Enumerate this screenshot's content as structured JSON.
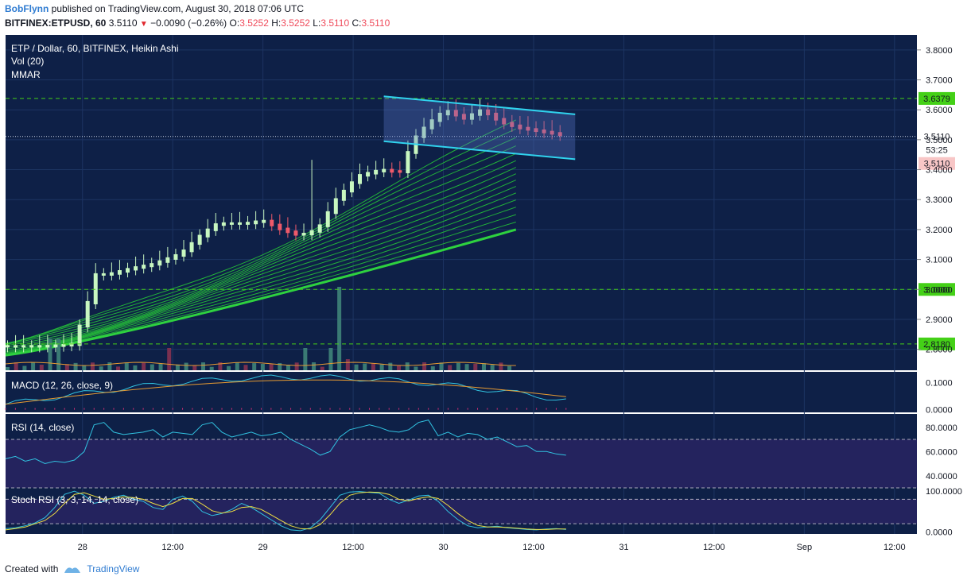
{
  "header": {
    "author": "BobFlynn",
    "published_text": "published on TradingView.com, August 30, 2018 07:06 UTC",
    "symbol_line": "BITFINEX:ETPUSD, 60",
    "last": "3.5110",
    "change_arrow": "▼",
    "change": "−0.0090 (−0.26%)",
    "o_label": "O:",
    "o_value": "3.5252",
    "h_label": "H:",
    "h_value": "3.5252",
    "l_label": "L:",
    "l_value": "3.5110",
    "c_label": "C:",
    "c_value": "3.5110"
  },
  "legend": {
    "main": "ETP / Dollar, 60, BITFINEX, Heikin Ashi",
    "vol": "Vol (20)",
    "mmar": "MMAR",
    "macd": "MACD (12, 26, close, 9)",
    "rsi": "RSI (14, close)",
    "stoch": "Stoch RSI (3, 3, 14, 14, close)"
  },
  "footer": {
    "created_with": "Created with",
    "brand": "TradingView"
  },
  "colors": {
    "pane_bg": "#0e2047",
    "up_candle": "#c8f7c0",
    "down_candle": "#ef5a6a",
    "ribbon": "#22b03a",
    "ribbon_main": "#2ed13f",
    "channel": "#30d3ee",
    "hline": "#44d017",
    "macd_line": "#31c2e0",
    "signal_line": "#e69a32",
    "rsi_band": "#24235e",
    "stoch_d": "#f0e042"
  },
  "chart_data": [
    {
      "type": "candlestick",
      "title": "ETP / Dollar, 60, BITFINEX, Heikin Ashi",
      "ylim": [
        2.73,
        3.85
      ],
      "y_ticks": [
        "3.8000",
        "3.7000",
        "3.6000",
        "3.5000",
        "3.4000",
        "3.3000",
        "3.2000",
        "3.1000",
        "3.0000",
        "2.9000",
        "2.8000"
      ],
      "x_ticks": [
        "28",
        "12:00",
        "29",
        "12:00",
        "30",
        "12:00",
        "31",
        "12:00",
        "Sep",
        "12:00"
      ],
      "horizontal_levels": [
        {
          "label": "3.6379",
          "value": 3.6379
        },
        {
          "label": "3.0000",
          "value": 3.0
        },
        {
          "label": "2.8180",
          "value": 2.818
        }
      ],
      "price_labels": [
        {
          "label": "3.5110",
          "value": 3.511
        },
        {
          "label": "53:25"
        },
        {
          "label": "3.5110"
        }
      ],
      "channel": {
        "upper": [
          {
            "x": 0.415,
            "y": 3.645
          },
          {
            "x": 0.625,
            "y": 3.585
          }
        ],
        "lower": [
          {
            "x": 0.415,
            "y": 3.495
          },
          {
            "x": 0.625,
            "y": 3.435
          }
        ]
      },
      "candle_close_path": [
        [
          0.0,
          2.81
        ],
        [
          0.04,
          2.81
        ],
        [
          0.07,
          2.815
        ],
        [
          0.085,
          2.92
        ],
        [
          0.095,
          3.05
        ],
        [
          0.11,
          3.05
        ],
        [
          0.135,
          3.07
        ],
        [
          0.16,
          3.085
        ],
        [
          0.19,
          3.12
        ],
        [
          0.215,
          3.19
        ],
        [
          0.23,
          3.22
        ],
        [
          0.26,
          3.22
        ],
        [
          0.28,
          3.23
        ],
        [
          0.3,
          3.2
        ],
        [
          0.32,
          3.18
        ],
        [
          0.34,
          3.2
        ],
        [
          0.36,
          3.3
        ],
        [
          0.385,
          3.38
        ],
        [
          0.41,
          3.4
        ],
        [
          0.43,
          3.39
        ],
        [
          0.445,
          3.5
        ],
        [
          0.46,
          3.55
        ],
        [
          0.48,
          3.6
        ],
        [
          0.5,
          3.57
        ],
        [
          0.52,
          3.6
        ],
        [
          0.54,
          3.56
        ],
        [
          0.56,
          3.54
        ],
        [
          0.58,
          3.53
        ],
        [
          0.6,
          3.52
        ],
        [
          0.615,
          3.511
        ]
      ],
      "ribbon": {
        "count": 16,
        "base_start": 2.78,
        "base_end": 3.2,
        "spread_start": 0.035,
        "spread_end": 0.36
      }
    },
    {
      "type": "bar",
      "title": "Vol (20)"
    },
    {
      "type": "line",
      "title": "MACD (12, 26, close, 9)",
      "y_ticks": [
        "0.1000",
        "0.0000"
      ],
      "ylim": [
        -0.01,
        0.14
      ]
    },
    {
      "type": "line",
      "title": "RSI (14, close)",
      "y_ticks": [
        "80.0000",
        "60.0000",
        "40.0000"
      ],
      "ylim": [
        32,
        91
      ],
      "values": [
        54,
        56,
        52,
        54,
        50,
        52,
        51,
        53,
        60,
        82,
        84,
        76,
        74,
        75,
        76,
        78,
        72,
        76,
        75,
        74,
        82,
        84,
        76,
        72,
        74,
        76,
        73,
        74,
        76,
        70,
        66,
        62,
        57,
        60,
        72,
        78,
        80,
        82,
        80,
        77,
        76,
        78,
        84,
        86,
        73,
        76,
        72,
        75,
        74,
        70,
        72,
        68,
        64,
        65,
        60,
        60,
        58,
        57
      ]
    },
    {
      "type": "line",
      "title": "Stoch RSI (3, 3, 14, 14, close)",
      "y_ticks": [
        "100.0000",
        "0.0000"
      ],
      "ylim": [
        -5,
        110
      ],
      "k": [
        8,
        10,
        15,
        22,
        35,
        60,
        92,
        100,
        90,
        70,
        75,
        85,
        90,
        80,
        75,
        60,
        55,
        80,
        88,
        75,
        50,
        40,
        45,
        55,
        70,
        60,
        45,
        30,
        15,
        5,
        3,
        10,
        30,
        60,
        90,
        98,
        99,
        97,
        95,
        80,
        70,
        78,
        88,
        90,
        75,
        50,
        30,
        15,
        10,
        12,
        14,
        10,
        8,
        6,
        5,
        7,
        8,
        6
      ],
      "d": [
        5,
        8,
        12,
        20,
        28,
        45,
        70,
        92,
        96,
        88,
        80,
        82,
        86,
        84,
        80,
        70,
        62,
        70,
        82,
        82,
        68,
        52,
        46,
        50,
        60,
        62,
        55,
        42,
        28,
        15,
        8,
        7,
        18,
        42,
        70,
        90,
        96,
        98,
        97,
        92,
        80,
        76,
        82,
        86,
        82,
        65,
        45,
        28,
        16,
        12,
        12,
        11,
        9,
        7,
        6,
        6,
        7,
        7
      ]
    }
  ]
}
